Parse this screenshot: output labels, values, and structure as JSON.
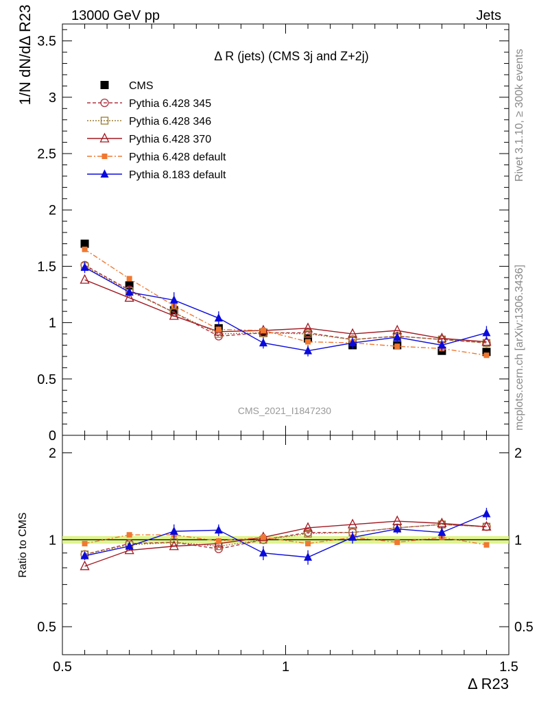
{
  "header": {
    "energy_label": "13000 GeV pp",
    "process_label": "Jets",
    "side_label_top": "Rivet 3.1.10, ≥ 300k events",
    "side_label_bottom": "mcplots.cern.ch [arXiv:1306.3436]",
    "watermark": "CMS_2021_I1847230"
  },
  "chart_data": {
    "type": "line",
    "title": "Δ R (jets) (CMS 3j and Z+2j)",
    "xlabel": "Δ R23",
    "ylabel_main": "1/N dN/dΔ R23",
    "ylabel_ratio": "Ratio to CMS",
    "xlim": [
      0.5,
      1.5
    ],
    "ylim_main": [
      0,
      3.65
    ],
    "ylim_ratio": [
      0.4,
      2.3
    ],
    "x_ticks": [
      "0.5",
      "1",
      "1.5"
    ],
    "y_ticks_main": [
      "0",
      "0.5",
      "1",
      "1.5",
      "2",
      "2.5",
      "3",
      "3.5"
    ],
    "y_ticks_ratio": [
      "0.5",
      "1",
      "2"
    ],
    "legend_position": "top-left",
    "x": [
      0.55,
      0.65,
      0.75,
      0.85,
      0.95,
      1.05,
      1.15,
      1.25,
      1.35,
      1.45
    ],
    "data": {
      "name": "CMS",
      "values": [
        1.7,
        1.33,
        1.11,
        0.95,
        0.91,
        0.86,
        0.8,
        0.8,
        0.75,
        0.74
      ],
      "errors": [
        0.02,
        0.02,
        0.02,
        0.02,
        0.02,
        0.02,
        0.02,
        0.02,
        0.02,
        0.02
      ],
      "ratio_band": [
        0.03,
        0.03,
        0.03,
        0.03,
        0.03,
        0.03,
        0.03,
        0.03,
        0.03,
        0.03
      ]
    },
    "series": [
      {
        "name": "Pythia 6.428 345",
        "color": "#b03040",
        "style": "dashed",
        "marker": "open-circle",
        "values": [
          1.51,
          1.29,
          1.09,
          0.88,
          0.91,
          0.91,
          0.85,
          0.88,
          0.85,
          0.82
        ],
        "ratio": [
          0.89,
          0.97,
          0.98,
          0.93,
          1.0,
          1.06,
          1.06,
          1.1,
          1.13,
          1.11
        ]
      },
      {
        "name": "Pythia 6.428 346",
        "color": "#9a7a30",
        "style": "dotted",
        "marker": "open-square",
        "values": [
          1.5,
          1.28,
          1.09,
          0.9,
          0.91,
          0.9,
          0.85,
          0.88,
          0.85,
          0.82
        ],
        "ratio": [
          0.89,
          0.96,
          0.98,
          0.95,
          1.0,
          1.05,
          1.06,
          1.1,
          1.13,
          1.11
        ]
      },
      {
        "name": "Pythia 6.428 370",
        "color": "#a01820",
        "style": "solid",
        "marker": "open-triangle",
        "values": [
          1.38,
          1.22,
          1.06,
          0.92,
          0.93,
          0.95,
          0.9,
          0.93,
          0.86,
          0.83
        ],
        "ratio": [
          0.81,
          0.92,
          0.95,
          0.97,
          1.02,
          1.1,
          1.13,
          1.16,
          1.14,
          1.11
        ]
      },
      {
        "name": "Pythia 6.428 default",
        "color": "#f07830",
        "style": "dashdot",
        "marker": "filled-square",
        "values": [
          1.65,
          1.39,
          1.15,
          0.94,
          0.93,
          0.83,
          0.82,
          0.79,
          0.77,
          0.71
        ],
        "ratio": [
          0.97,
          1.04,
          1.04,
          0.99,
          1.02,
          0.97,
          1.02,
          0.98,
          1.02,
          0.96
        ],
        "errors": [
          0.01,
          0.01,
          0.01,
          0.01,
          0.01,
          0.01,
          0.01,
          0.01,
          0.01,
          0.01
        ]
      },
      {
        "name": "Pythia 8.183 default",
        "color": "#0a0adc",
        "style": "solid",
        "marker": "filled-triangle",
        "values": [
          1.49,
          1.27,
          1.2,
          1.04,
          0.82,
          0.75,
          0.82,
          0.87,
          0.8,
          0.91
        ],
        "ratio": [
          0.88,
          0.95,
          1.07,
          1.08,
          0.9,
          0.87,
          1.02,
          1.09,
          1.06,
          1.23
        ],
        "errors": [
          0.05,
          0.04,
          0.07,
          0.06,
          0.05,
          0.05,
          0.05,
          0.05,
          0.05,
          0.06
        ],
        "ratio_errors": [
          0.03,
          0.03,
          0.06,
          0.05,
          0.05,
          0.05,
          0.05,
          0.04,
          0.05,
          0.06
        ]
      }
    ]
  }
}
